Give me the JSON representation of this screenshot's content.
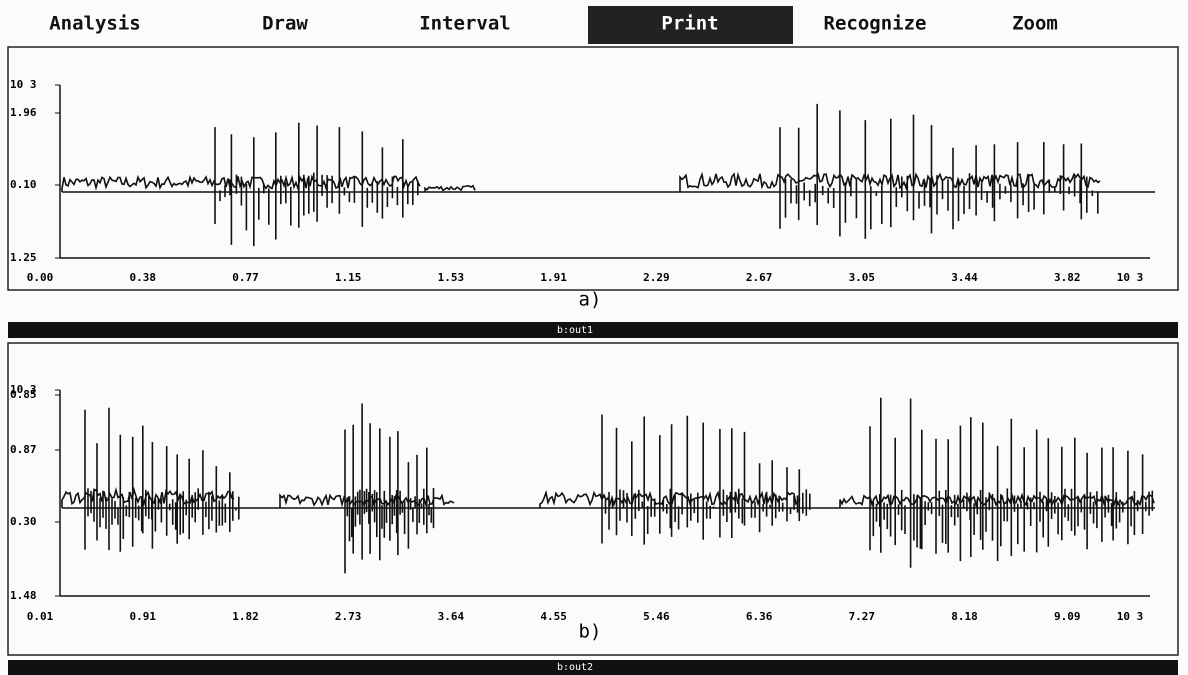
{
  "menu": {
    "items": [
      "Analysis",
      "Draw",
      "Interval",
      "Print",
      "Recognize",
      "Zoom"
    ],
    "selected": "Print"
  },
  "panels": [
    {
      "y_labels": [
        "10 3",
        "1.96",
        "0.10",
        "1.25"
      ],
      "x_labels": [
        "0.00",
        "0.38",
        "0.77",
        "1.15",
        "1.53",
        "1.91",
        "2.29",
        "2.67",
        "3.05",
        "3.44",
        "3.82",
        "10 3"
      ],
      "caption": "a)",
      "status": "b:out1"
    },
    {
      "y_labels": [
        "10 3",
        "0.85",
        "0.87",
        "0.30",
        "1.48"
      ],
      "x_labels": [
        "0.01",
        "0.91",
        "1.82",
        "2.73",
        "3.64",
        "4.55",
        "5.46",
        "6.36",
        "7.27",
        "8.18",
        "9.09",
        "10 3"
      ],
      "caption": "b)",
      "status": "b:out2"
    }
  ]
}
